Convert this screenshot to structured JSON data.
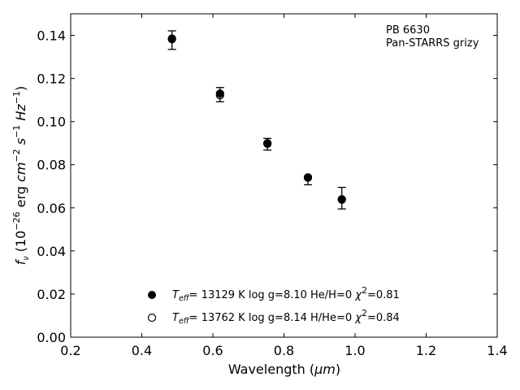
{
  "chart_data": {
    "type": "scatter",
    "title": "",
    "xlabel": "Wavelength",
    "xlabel_unit": "μm",
    "ylabel_symbol": "f",
    "ylabel_subscript": "ν",
    "ylabel_units": "erg cm s Hz",
    "xlim": [
      0.2,
      1.4
    ],
    "ylim": [
      0.0,
      0.15
    ],
    "xticks": [
      "0.2",
      "0.4",
      "0.6",
      "0.8",
      "1.0",
      "1.2",
      "1.4"
    ],
    "yticks": [
      "0.00",
      "0.02",
      "0.04",
      "0.06",
      "0.08",
      "0.10",
      "0.12",
      "0.14"
    ],
    "grid": false,
    "annotations": [
      "PB 6630",
      "Pan-STARRS grizy"
    ],
    "observed": {
      "x": [
        0.4849,
        0.6201,
        0.7535,
        0.8674,
        0.9628
      ],
      "y": [
        0.1378,
        0.1125,
        0.0895,
        0.0727,
        0.0645
      ],
      "err": [
        0.0043,
        0.0033,
        0.0027,
        0.002,
        0.005
      ]
    },
    "series": [
      {
        "marker": "filled-circle",
        "teff": "13129",
        "logg": "8.10",
        "ratio_label": "He/H=0",
        "chi2": "0.81",
        "x": [
          0.4849,
          0.6201,
          0.7535,
          0.8674,
          0.9628
        ],
        "y": [
          0.1385,
          0.113,
          0.09,
          0.074,
          0.064
        ]
      },
      {
        "marker": "open-circle",
        "teff": "13762",
        "logg": "8.14",
        "ratio_label": "H/He=0",
        "chi2": "0.84",
        "x": [
          0.4849,
          0.6201,
          0.7535,
          0.8674,
          0.9628
        ],
        "y": [
          0.1382,
          0.1122,
          0.0897,
          0.0741,
          0.0638
        ]
      }
    ],
    "legend_position": "bottom-center"
  }
}
